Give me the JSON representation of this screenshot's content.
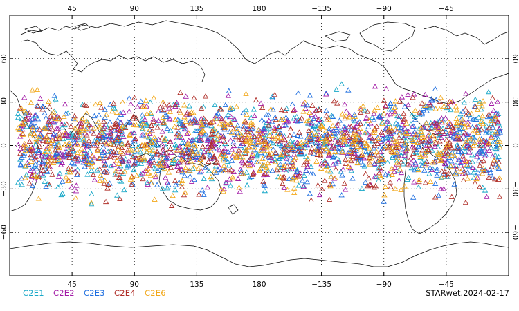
{
  "chart_data": {
    "type": "scatter",
    "title": "",
    "xlabel": "",
    "ylabel": "",
    "projection": "cylindrical",
    "central_longitude": 180,
    "xlim": [
      0,
      360
    ],
    "ylim": [
      -90,
      90
    ],
    "grid": true,
    "marker": "open-triangle",
    "top_tick_labels": [
      {
        "lon": 45,
        "label": "45"
      },
      {
        "lon": 90,
        "label": "90"
      },
      {
        "lon": 135,
        "label": "135"
      },
      {
        "lon": 180,
        "label": "180"
      },
      {
        "lon": 225,
        "label": "−135"
      },
      {
        "lon": 270,
        "label": "−90"
      },
      {
        "lon": 315,
        "label": "−45"
      }
    ],
    "bottom_tick_labels": [
      {
        "lon": 45,
        "label": "45"
      },
      {
        "lon": 90,
        "label": "90"
      },
      {
        "lon": 135,
        "label": "135"
      },
      {
        "lon": 180,
        "label": "180"
      },
      {
        "lon": 225,
        "label": "−135"
      },
      {
        "lon": 270,
        "label": "−90"
      },
      {
        "lon": 315,
        "label": "−45"
      }
    ],
    "left_tick_labels": [
      {
        "lat": 60,
        "label": "60"
      },
      {
        "lat": 30,
        "label": "30"
      },
      {
        "lat": 0,
        "label": "0"
      },
      {
        "lat": -30,
        "label": "−30"
      },
      {
        "lat": -60,
        "label": "−60"
      }
    ],
    "right_tick_labels": [
      {
        "lat": 60,
        "label": "60"
      },
      {
        "lat": 30,
        "label": "30"
      },
      {
        "lat": 0,
        "label": "0"
      },
      {
        "lat": -30,
        "label": "−30"
      },
      {
        "lat": -60,
        "label": "−60"
      }
    ],
    "lat_band": [
      -45,
      45
    ],
    "series": [
      {
        "name": "C2E1",
        "color": "#19a8c8"
      },
      {
        "name": "C2E2",
        "color": "#a21aa6"
      },
      {
        "name": "C2E3",
        "color": "#1f6fe0"
      },
      {
        "name": "C2E4",
        "color": "#b0302a"
      },
      {
        "name": "C2E6",
        "color": "#f2a81a"
      }
    ]
  },
  "stamp": "STARwet.2024-02-17"
}
